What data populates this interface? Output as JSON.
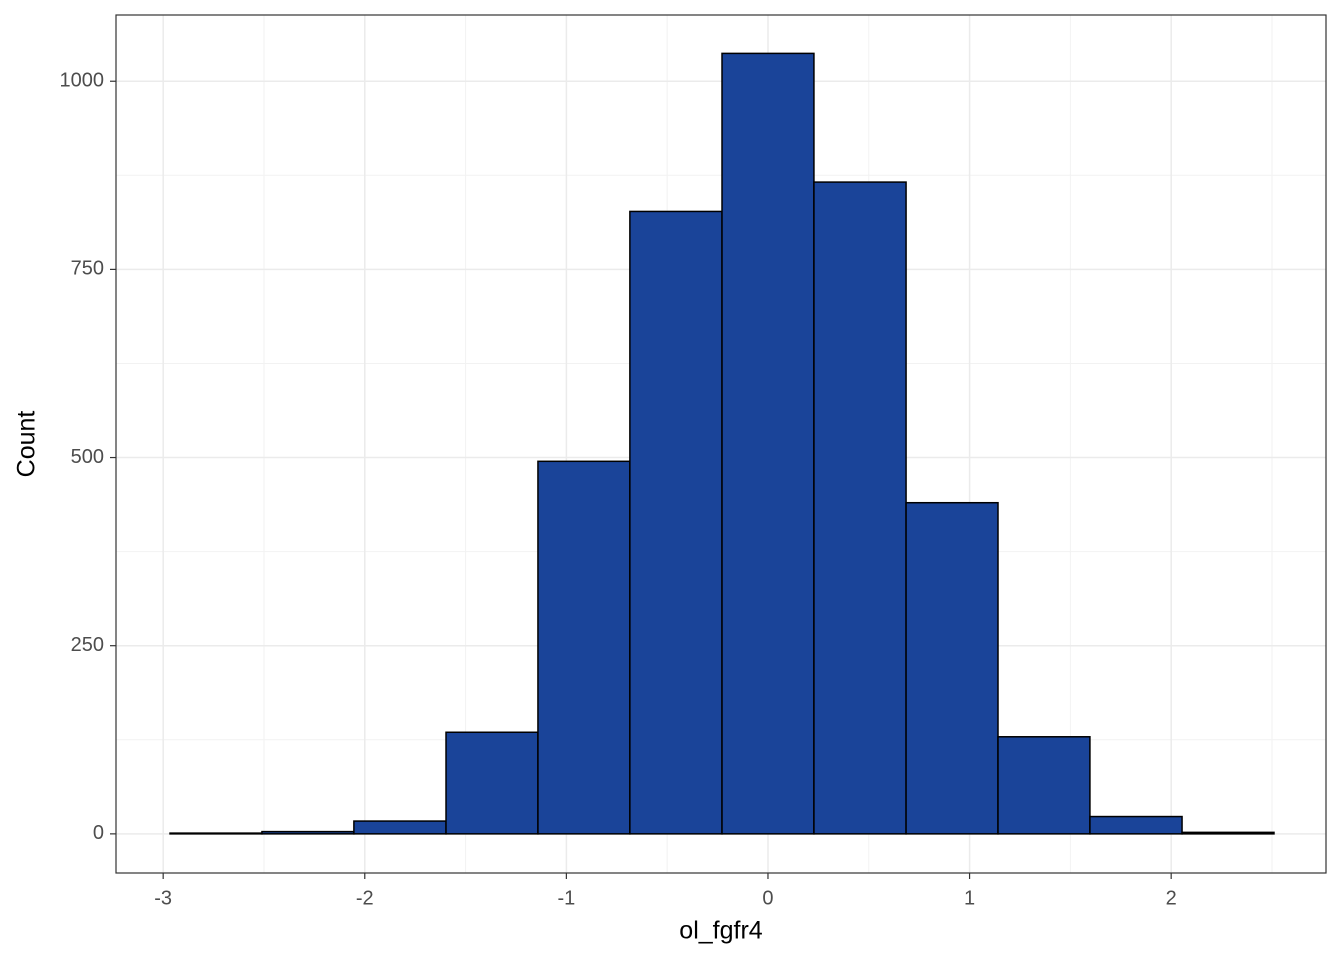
{
  "chart_data": {
    "type": "histogram",
    "x_label": "ol_fgfr4",
    "y_label": "Count",
    "bins": [
      -2.966,
      -2.51,
      -2.054,
      -1.597,
      -1.141,
      -0.685,
      -0.228,
      0.228,
      0.685,
      1.141,
      1.597,
      2.054,
      2.51
    ],
    "values": [
      1,
      3,
      17,
      135,
      495,
      827,
      1037,
      866,
      440,
      129,
      23,
      2
    ],
    "color": "#1a4499",
    "edge_color": "#000000",
    "xlim": [
      -3.234,
      2.768
    ],
    "xticks": [
      -3,
      -2,
      -1,
      0,
      1,
      2
    ],
    "ylim": [
      -52,
      1088
    ],
    "yticks": [
      0,
      250,
      500,
      750,
      1000
    ],
    "grid": true
  }
}
